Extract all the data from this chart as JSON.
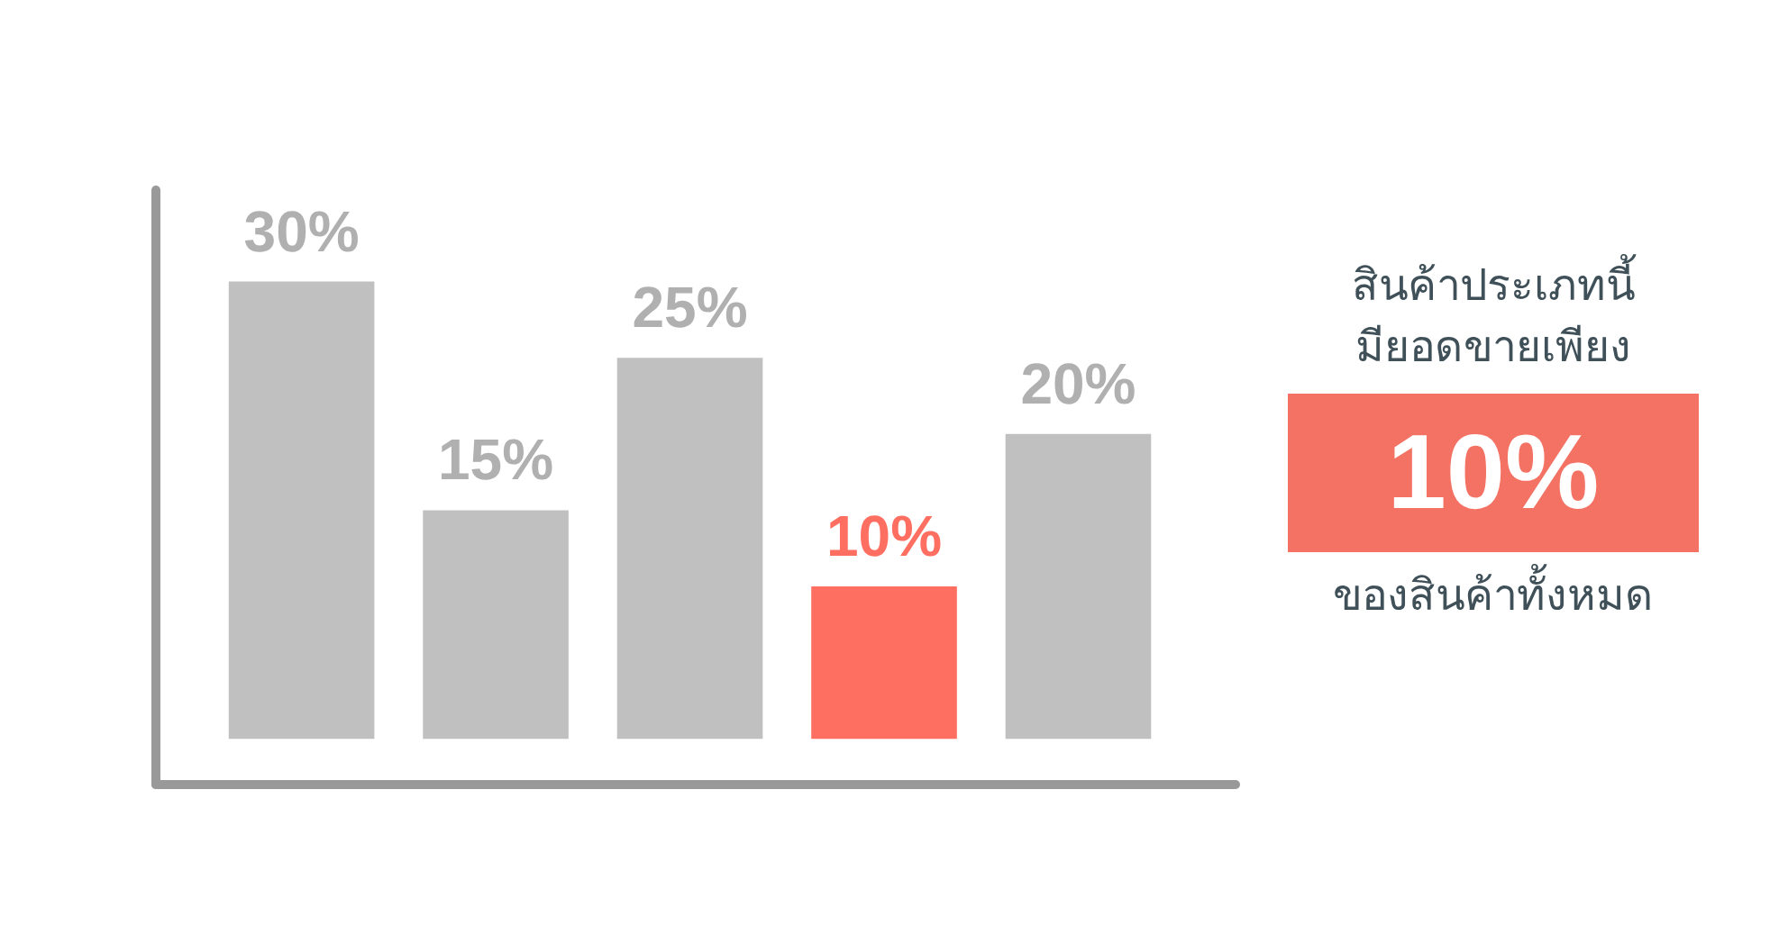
{
  "chart_data": {
    "type": "bar",
    "categories": [
      null,
      null,
      null,
      null,
      null
    ],
    "values": [
      30,
      15,
      25,
      10,
      20
    ],
    "colors": [
      "#c0c0c0",
      "#c0c0c0",
      "#c0c0c0",
      "#ff6f61",
      "#c0c0c0"
    ],
    "value_labels": [
      "30%",
      "15%",
      "25%",
      "10%",
      "20%"
    ],
    "grid": false,
    "annotations": [
      "สินค้าประเภทนี้",
      "มียอดขายเพียง",
      "10%",
      "ของสินค้าทั้งหมด"
    ]
  }
}
